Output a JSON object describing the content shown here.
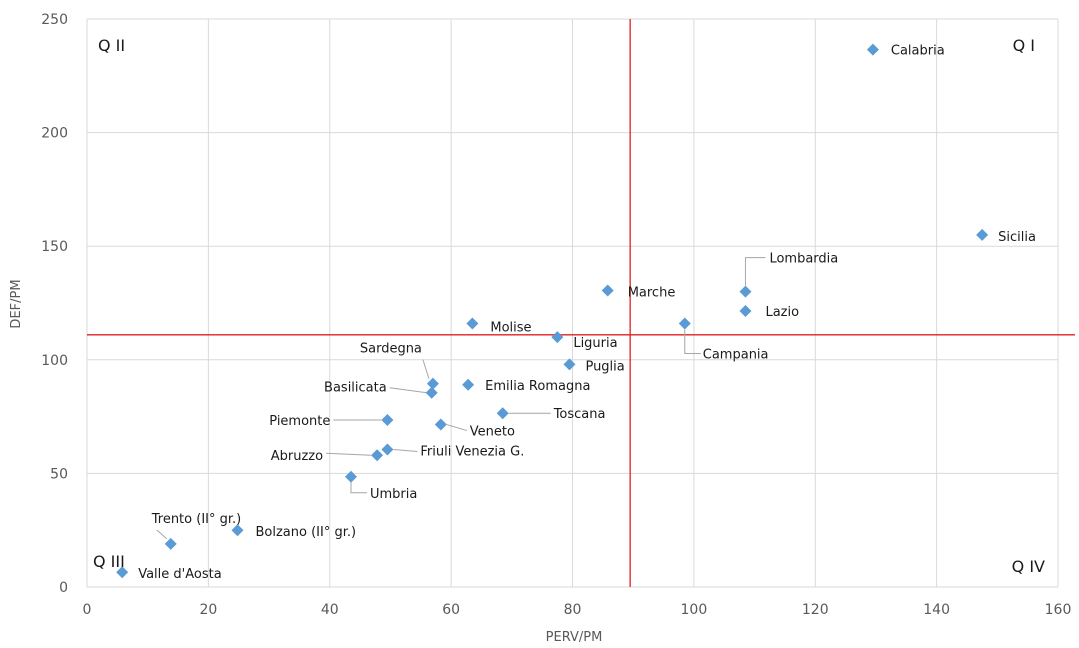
{
  "chart_data": {
    "type": "scatter",
    "xlabel": "PERV/PM",
    "ylabel": "DEF/PM",
    "xlim": [
      0,
      160
    ],
    "ylim": [
      0,
      250
    ],
    "x_ticks": [
      "0",
      "20",
      "40",
      "60",
      "80",
      "100",
      "120",
      "140",
      "160"
    ],
    "y_ticks": [
      "0",
      "50",
      "100",
      "150",
      "200",
      "250"
    ],
    "grid": true,
    "reference_lines": {
      "x": 89.5,
      "y": 111,
      "color": "#e02020"
    },
    "marker_color": "#5b9bd5",
    "quadrants": [
      {
        "label": "Q I",
        "position": "top-right"
      },
      {
        "label": "Q II",
        "position": "top-left"
      },
      {
        "label": "Q III",
        "position": "bottom-left"
      },
      {
        "label": "Q IV",
        "position": "bottom-right"
      }
    ],
    "points": [
      {
        "label": "Calabria",
        "x": 129.5,
        "y": 236.5
      },
      {
        "label": "Sicilia",
        "x": 147.5,
        "y": 155
      },
      {
        "label": "Lombardia",
        "x": 108.5,
        "y": 130
      },
      {
        "label": "Marche",
        "x": 85.8,
        "y": 130.5
      },
      {
        "label": "Lazio",
        "x": 108.5,
        "y": 121.5
      },
      {
        "label": "Campania",
        "x": 98.5,
        "y": 116
      },
      {
        "label": "Molise",
        "x": 63.5,
        "y": 116
      },
      {
        "label": "Liguria",
        "x": 77.5,
        "y": 110
      },
      {
        "label": "Puglia",
        "x": 79.5,
        "y": 98
      },
      {
        "label": "Sardegna",
        "x": 57.0,
        "y": 89.5
      },
      {
        "label": "Basilicata",
        "x": 56.8,
        "y": 85.5
      },
      {
        "label": "Emilia Romagna",
        "x": 62.8,
        "y": 89
      },
      {
        "label": "Toscana",
        "x": 68.5,
        "y": 76.5
      },
      {
        "label": "Piemonte",
        "x": 49.5,
        "y": 73.5
      },
      {
        "label": "Veneto",
        "x": 58.3,
        "y": 71.5
      },
      {
        "label": "Friuli Venezia G.",
        "x": 49.5,
        "y": 60.5
      },
      {
        "label": "Abruzzo",
        "x": 47.8,
        "y": 58
      },
      {
        "label": "Umbria",
        "x": 43.5,
        "y": 48.5
      },
      {
        "label": "Bolzano (II° gr.)",
        "x": 24.8,
        "y": 25
      },
      {
        "label": "Trento (II° gr.)",
        "x": 13.8,
        "y": 19
      },
      {
        "label": "Valle d'Aosta",
        "x": 5.8,
        "y": 6.5
      }
    ]
  }
}
